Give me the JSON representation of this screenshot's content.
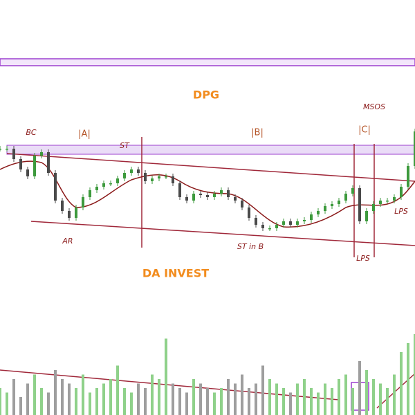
{
  "chart_data": {
    "type": "candlestick",
    "title": "DPG",
    "watermark": "DA INVEST",
    "annotations": [
      "MSOS",
      "BC",
      "|A|",
      "ST",
      "|B|",
      "|C|",
      "AR",
      "ST in B",
      "LPS",
      "LPS"
    ],
    "values": [
      82.5,
      82.5,
      75,
      67.5,
      62.5,
      77.5,
      80,
      65,
      45,
      37.5,
      32.5,
      40,
      47.5,
      52.5,
      55,
      57.5,
      57.5,
      61,
      65,
      67.5,
      65,
      59,
      61,
      62.5,
      62.5,
      57.5,
      47.5,
      45,
      50,
      49,
      47.5,
      50,
      52.5,
      47.5,
      45,
      40,
      32.5,
      27.5,
      25,
      25,
      27.5,
      30,
      27.5,
      30,
      31,
      35,
      37.5,
      41,
      42.5,
      45,
      50,
      54,
      30,
      37.5,
      42.5,
      45,
      45,
      47.5,
      55,
      70,
      95
    ],
    "volume": [
      30,
      25,
      40,
      20,
      35,
      45,
      30,
      25,
      50,
      40,
      35,
      30,
      45,
      25,
      30,
      35,
      40,
      55,
      30,
      25,
      35,
      30,
      45,
      40,
      85,
      35,
      30,
      25,
      40,
      35,
      30,
      25,
      30,
      40,
      35,
      45,
      30,
      35,
      55,
      40,
      35,
      30,
      25,
      35,
      40,
      30,
      25,
      35,
      30,
      40,
      45,
      30,
      60,
      50,
      40,
      35,
      30,
      45,
      70,
      80,
      90
    ],
    "ylim": [
      0,
      100
    ],
    "volume_lim": [
      0,
      100
    ],
    "up_color": "#3d9a3d",
    "down_color": "#4a4a4a",
    "volume_up_color": "#8fd18a",
    "volume_down_color": "#9e9e9e"
  }
}
